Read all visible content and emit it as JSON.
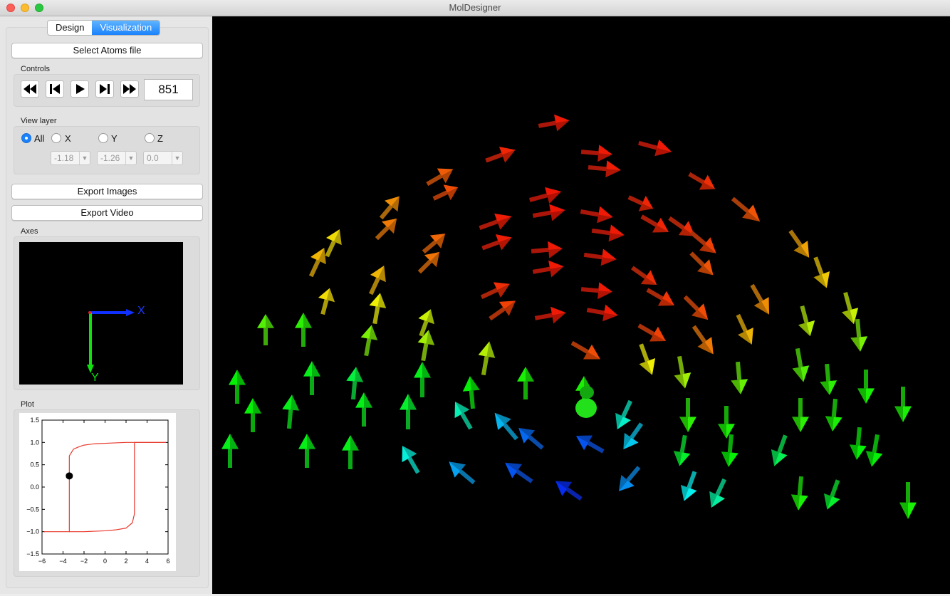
{
  "window": {
    "title": "MolDesigner"
  },
  "tabs": {
    "design": "Design",
    "visualization": "Visualization"
  },
  "buttons": {
    "select_atoms": "Select Atoms file",
    "export_images": "Export Images",
    "export_video": "Export Video"
  },
  "controls": {
    "label": "Controls",
    "frame": "851"
  },
  "view_layer": {
    "label": "View layer",
    "options": [
      "All",
      "X",
      "Y",
      "Z"
    ],
    "selected": "All",
    "x_value": "-1.18",
    "y_value": "-1.26",
    "z_value": "0.0"
  },
  "axes": {
    "label": "Axes",
    "x_label": "X",
    "y_label": "Y"
  },
  "plot": {
    "label": "Plot",
    "chart_data": {
      "type": "line",
      "x_ticks": [
        -6,
        -4,
        -2,
        0,
        2,
        4,
        6
      ],
      "y_ticks": [
        1.5,
        1.0,
        0.5,
        0.0,
        -0.5,
        -1.0,
        -1.5
      ],
      "xlim": [
        -6,
        6
      ],
      "ylim": [
        -1.5,
        1.5
      ],
      "series": [
        {
          "x": [
            -5.8,
            -3.4,
            -3.4,
            -3.0,
            -2.5,
            -2.0,
            -1.0,
            0.0,
            1.0,
            2.0,
            2.8,
            5.8
          ],
          "y": [
            -1.0,
            -1.0,
            0.7,
            0.85,
            0.9,
            0.94,
            0.97,
            0.98,
            0.99,
            1.0,
            1.0,
            1.0
          ]
        },
        {
          "x": [
            -3.4,
            -2.0,
            -1.0,
            0.0,
            1.0,
            2.0,
            2.6,
            2.8,
            2.8,
            5.8
          ],
          "y": [
            -1.0,
            -1.0,
            -0.99,
            -0.98,
            -0.96,
            -0.92,
            -0.8,
            -0.6,
            1.0,
            1.0
          ]
        }
      ],
      "marker": {
        "x": -3.4,
        "y": 0.25
      },
      "line_color": "#e8382b"
    }
  },
  "colors": {
    "accent": "#1a82fb",
    "viewport_bg": "#000000"
  }
}
